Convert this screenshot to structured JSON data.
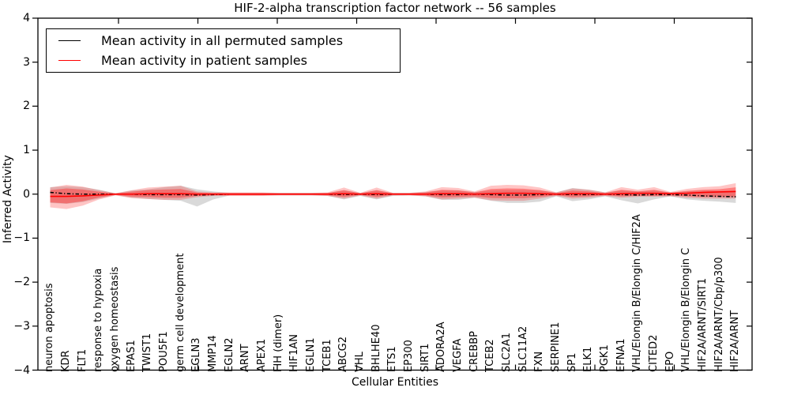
{
  "title": "HIF-2-alpha transcription factor network -- 56 samples",
  "legend": {
    "items": [
      {
        "label": "Mean activity in all permuted samples",
        "color": "#000000"
      },
      {
        "label": "Mean activity in patient samples",
        "color": "#ff0000"
      }
    ],
    "position": "upper left"
  },
  "colors": {
    "permuted_line": "#000000",
    "patient_line": "#ff0000",
    "permuted_band": "#808080",
    "patient_band": "#ff2a2a",
    "axis": "#000000",
    "background": "#ffffff"
  },
  "chart_data": {
    "type": "line",
    "title": "HIF-2-alpha transcription factor network -- 56 samples",
    "xlabel": "Cellular Entities",
    "ylabel": "Inferred Activity",
    "ylim": [
      -4,
      4
    ],
    "ytick_labels": [
      "4",
      "3",
      "2",
      "1",
      "0",
      "−1",
      "−2",
      "−3",
      "−4"
    ],
    "ytick_values": [
      4,
      3,
      2,
      1,
      0,
      -1,
      -2,
      -3,
      -4
    ],
    "grid": false,
    "legend_position": "upper left",
    "categories": [
      "neuron apoptosis",
      "KDR",
      "FLT1",
      "response to hypoxia",
      "oxygen homeostasis",
      "EPAS1",
      "TWIST1",
      "POU5F1",
      "germ cell development",
      "EGLN3",
      "MMP14",
      "EGLN2",
      "ARNT",
      "APEX1",
      "FIH (dimer)",
      "HIF1AN",
      "EGLN1",
      "TCEB1",
      "ABCG2",
      "VHL",
      "BHLHE40",
      "ETS1",
      "EP300",
      "SIRT1",
      "ADORA2A",
      "VEGFA",
      "CREBBP",
      "TCEB2",
      "SLC2A1",
      "SLC11A2",
      "FXN",
      "SERPINE1",
      "SP1",
      "ELK1",
      "PGK1",
      "EFNA1",
      "VHL/Elongin B/Elongin C/HIF2A",
      "CITED2",
      "EPO",
      "VHL/Elongin B/Elongin C",
      "HIF2A/ARNT/SIRT1",
      "HIF2A/ARNT/Cbp/p300",
      "HIF2A/ARNT"
    ],
    "series": [
      {
        "name": "Mean activity in all permuted samples",
        "color": "#000000",
        "style": "dash-dot",
        "values": [
          0.04,
          0.01,
          0.0,
          0.0,
          0.0,
          0.0,
          -0.01,
          -0.01,
          -0.01,
          -0.02,
          -0.01,
          0.0,
          0.0,
          0.0,
          0.0,
          0.0,
          0.0,
          0.0,
          -0.01,
          0.0,
          -0.01,
          0.0,
          0.0,
          0.0,
          -0.01,
          -0.01,
          0.0,
          -0.01,
          -0.02,
          -0.02,
          -0.01,
          0.0,
          -0.01,
          -0.01,
          0.0,
          -0.01,
          -0.02,
          -0.01,
          -0.01,
          -0.02,
          -0.04,
          -0.05,
          -0.06
        ]
      },
      {
        "name": "Mean activity in patient samples",
        "color": "#ff0000",
        "style": "solid",
        "values": [
          -0.05,
          -0.05,
          -0.04,
          -0.02,
          0.0,
          0.0,
          0.01,
          0.01,
          0.01,
          0.0,
          0.0,
          0.0,
          0.0,
          0.0,
          0.0,
          0.0,
          0.0,
          0.0,
          0.01,
          0.0,
          0.01,
          0.0,
          0.0,
          0.0,
          0.01,
          0.01,
          0.0,
          0.01,
          0.02,
          0.02,
          0.01,
          0.0,
          0.01,
          0.01,
          0.0,
          0.01,
          0.02,
          0.02,
          0.01,
          0.02,
          0.04,
          0.05,
          0.06
        ]
      }
    ],
    "bands": [
      {
        "name": "permuted-samples-range",
        "color": "#808080",
        "opacity": 0.3,
        "upper": [
          0.16,
          0.18,
          0.16,
          0.1,
          0.02,
          0.08,
          0.11,
          0.16,
          0.19,
          0.11,
          0.06,
          0.03,
          0.03,
          0.03,
          0.03,
          0.03,
          0.03,
          0.03,
          0.08,
          0.03,
          0.08,
          0.03,
          0.03,
          0.05,
          0.08,
          0.08,
          0.05,
          0.08,
          0.09,
          0.09,
          0.08,
          0.04,
          0.14,
          0.1,
          0.04,
          0.08,
          0.06,
          0.08,
          0.04,
          0.06,
          0.08,
          0.07,
          0.08
        ],
        "lower": [
          -0.2,
          -0.22,
          -0.18,
          -0.1,
          -0.02,
          -0.08,
          -0.11,
          -0.13,
          -0.15,
          -0.28,
          -0.12,
          -0.03,
          -0.03,
          -0.03,
          -0.03,
          -0.03,
          -0.03,
          -0.04,
          -0.12,
          -0.04,
          -0.12,
          -0.04,
          -0.03,
          -0.05,
          -0.13,
          -0.13,
          -0.08,
          -0.15,
          -0.2,
          -0.2,
          -0.17,
          -0.05,
          -0.16,
          -0.12,
          -0.05,
          -0.14,
          -0.21,
          -0.12,
          -0.05,
          -0.12,
          -0.15,
          -0.17,
          -0.2
        ]
      },
      {
        "name": "patient-samples-range-outer",
        "color": "#ff2a2a",
        "opacity": 0.27,
        "upper": [
          0.15,
          0.21,
          0.17,
          0.09,
          0.02,
          0.09,
          0.15,
          0.17,
          0.19,
          0.06,
          0.04,
          0.04,
          0.04,
          0.04,
          0.03,
          0.03,
          0.03,
          0.04,
          0.15,
          0.03,
          0.15,
          0.03,
          0.03,
          0.06,
          0.16,
          0.14,
          0.06,
          0.19,
          0.21,
          0.2,
          0.15,
          0.04,
          0.13,
          0.1,
          0.04,
          0.16,
          0.1,
          0.16,
          0.05,
          0.12,
          0.16,
          0.18,
          0.25
        ],
        "lower": [
          -0.3,
          -0.34,
          -0.26,
          -0.12,
          -0.03,
          -0.09,
          -0.11,
          -0.13,
          -0.13,
          -0.07,
          -0.04,
          -0.04,
          -0.04,
          -0.04,
          -0.03,
          -0.03,
          -0.03,
          -0.04,
          -0.1,
          -0.03,
          -0.1,
          -0.03,
          -0.03,
          -0.05,
          -0.12,
          -0.1,
          -0.08,
          -0.14,
          -0.15,
          -0.15,
          -0.1,
          -0.04,
          -0.1,
          -0.08,
          -0.04,
          -0.08,
          -0.06,
          -0.06,
          -0.05,
          -0.08,
          -0.1,
          -0.1,
          -0.1
        ]
      },
      {
        "name": "patient-samples-range-inner",
        "color": "#ff2a2a",
        "opacity": 0.45,
        "scale_of": "patient-samples-range-outer",
        "scale": 0.62
      }
    ]
  }
}
